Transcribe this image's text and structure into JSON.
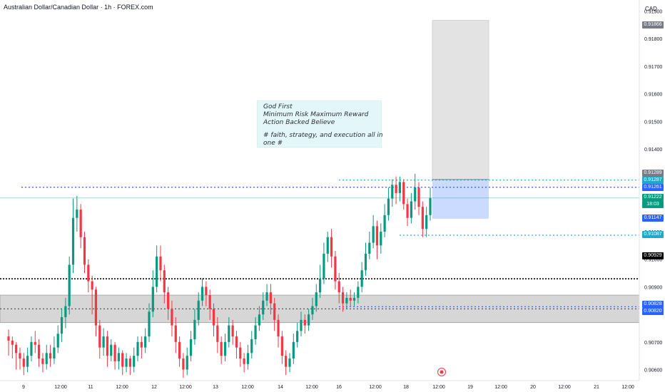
{
  "header": {
    "title": "Australian Dollar/Canadian Dollar · 1h · FOREX.com"
  },
  "axis": {
    "currency": "CAD",
    "y_ticks": [
      {
        "label": "0.91900",
        "value": 0.919
      },
      {
        "label": "0.91800",
        "value": 0.918
      },
      {
        "label": "0.91700",
        "value": 0.917
      },
      {
        "label": "0.91600",
        "value": 0.916
      },
      {
        "label": "0.91500",
        "value": 0.915
      },
      {
        "label": "0.91400",
        "value": 0.914
      },
      {
        "label": "0.91100",
        "value": 0.911
      },
      {
        "label": "0.91000",
        "value": 0.91
      },
      {
        "label": "0.90900",
        "value": 0.909
      },
      {
        "label": "0.90700",
        "value": 0.907
      },
      {
        "label": "0.90600",
        "value": 0.906
      }
    ],
    "x_ticks": [
      "9",
      "12:00",
      "11",
      "12:00",
      "12",
      "12:00",
      "13",
      "12:00",
      "14",
      "12:00",
      "16",
      "12:00",
      "18",
      "12:00",
      "19",
      "12:00",
      "20",
      "12:00",
      "21",
      "12:00"
    ]
  },
  "price_labels": [
    {
      "label": "0.91866",
      "color": "#787b86",
      "value": 0.91866
    },
    {
      "label": "0.91289",
      "color": "#787b86",
      "value": 0.91289
    },
    {
      "label": "0.91287",
      "color": "#22a7c7",
      "value": 0.91287
    },
    {
      "label": "0.91261",
      "color": "#2962ff",
      "value": 0.91261
    },
    {
      "label": "0.91222",
      "color": "#089981",
      "value": 0.91222
    },
    {
      "label": "18:03",
      "color": "#089981",
      "value": 0.91205
    },
    {
      "label": "0.91147",
      "color": "#2962ff",
      "value": 0.91147
    },
    {
      "label": "0.91087",
      "color": "#22a7c7",
      "value": 0.91087
    },
    {
      "label": "0.90929",
      "color": "#000000",
      "value": 0.90929
    },
    {
      "label": "0.90828",
      "color": "#2962ff",
      "value": 0.90828
    },
    {
      "label": "0.90820",
      "color": "#2962ff",
      "value": 0.9082
    }
  ],
  "annotation": {
    "lines": [
      "God First",
      "Minimum Risk Maximum Reward",
      "Action Backed Believe",
      "",
      "# faith, strategy, and execution all in",
      "one #"
    ]
  },
  "colors": {
    "up": "#089981",
    "down": "#f23645",
    "blue_dotted": "#2962ff",
    "teal_dotted": "#22a7c7",
    "zone": "#cfcfcf",
    "target": "#e0e0e0",
    "stop": "#c5d6ff"
  },
  "chart_data": {
    "type": "candlestick",
    "symbol": "AUDCAD",
    "timeframe": "1h",
    "ylim": [
      0.9056,
      0.9194
    ],
    "last_price": 0.91222,
    "horizontal_levels": [
      {
        "price": 0.91261,
        "style": "dotted",
        "color": "#2962ff"
      },
      {
        "price": 0.91287,
        "style": "dotted",
        "color": "#22a7c7"
      },
      {
        "price": 0.91087,
        "style": "dotted",
        "color": "#22a7c7"
      },
      {
        "price": 0.90929,
        "style": "dotted",
        "color": "#000000"
      },
      {
        "price": 0.90828,
        "style": "dotted",
        "color": "#2962ff"
      },
      {
        "price": 0.9082,
        "style": "dotted",
        "color": "#555555"
      }
    ],
    "zone": {
      "from": 0.9077,
      "to": 0.9087
    },
    "position": {
      "entry": 0.91289,
      "target": 0.91866,
      "stop": 0.91147
    },
    "candles": [
      [
        0.9072,
        0.90705,
        0.90745,
        0.9065
      ],
      [
        0.90705,
        0.9069,
        0.9072,
        0.9064
      ],
      [
        0.9069,
        0.9066,
        0.907,
        0.906
      ],
      [
        0.9066,
        0.9064,
        0.9068,
        0.906
      ],
      [
        0.9064,
        0.9061,
        0.9066,
        0.9058
      ],
      [
        0.9061,
        0.9065,
        0.9068,
        0.9059
      ],
      [
        0.9065,
        0.907,
        0.9072,
        0.9063
      ],
      [
        0.907,
        0.9069,
        0.9074,
        0.9066
      ],
      [
        0.9069,
        0.9064,
        0.9071,
        0.9061
      ],
      [
        0.9064,
        0.9062,
        0.9066,
        0.9059
      ],
      [
        0.9062,
        0.9066,
        0.9069,
        0.906
      ],
      [
        0.9066,
        0.9064,
        0.9069,
        0.9061
      ],
      [
        0.9064,
        0.9068,
        0.9072,
        0.9062
      ],
      [
        0.9068,
        0.9073,
        0.9076,
        0.9066
      ],
      [
        0.9073,
        0.9079,
        0.9082,
        0.907
      ],
      [
        0.9079,
        0.9083,
        0.9086,
        0.9075
      ],
      [
        0.9083,
        0.9098,
        0.9101,
        0.908
      ],
      [
        0.9098,
        0.9115,
        0.9122,
        0.9095
      ],
      [
        0.9115,
        0.9118,
        0.9123,
        0.911
      ],
      [
        0.9118,
        0.9108,
        0.912,
        0.9104
      ],
      [
        0.9108,
        0.9098,
        0.911,
        0.9095
      ],
      [
        0.9098,
        0.9092,
        0.91,
        0.9088
      ],
      [
        0.9092,
        0.9089,
        0.9094,
        0.908
      ],
      [
        0.9089,
        0.9076,
        0.909,
        0.9072
      ],
      [
        0.9076,
        0.9068,
        0.9078,
        0.9064
      ],
      [
        0.9068,
        0.9072,
        0.9075,
        0.9065
      ],
      [
        0.9072,
        0.9065,
        0.9074,
        0.9061
      ],
      [
        0.9065,
        0.9069,
        0.9071,
        0.9063
      ],
      [
        0.9069,
        0.9063,
        0.907,
        0.906
      ],
      [
        0.9063,
        0.9066,
        0.9068,
        0.906
      ],
      [
        0.9066,
        0.9061,
        0.9067,
        0.9058
      ],
      [
        0.9061,
        0.9064,
        0.9066,
        0.9059
      ],
      [
        0.9064,
        0.9061,
        0.9065,
        0.9058
      ],
      [
        0.9061,
        0.9065,
        0.9068,
        0.9059
      ],
      [
        0.9065,
        0.907,
        0.9072,
        0.9063
      ],
      [
        0.907,
        0.9068,
        0.9072,
        0.9064
      ],
      [
        0.9068,
        0.9072,
        0.9075,
        0.9066
      ],
      [
        0.9072,
        0.9081,
        0.9084,
        0.907
      ],
      [
        0.9081,
        0.909,
        0.9096,
        0.9079
      ],
      [
        0.909,
        0.9101,
        0.9105,
        0.9088
      ],
      [
        0.9101,
        0.9096,
        0.9105,
        0.9092
      ],
      [
        0.9096,
        0.9088,
        0.9098,
        0.9084
      ],
      [
        0.9088,
        0.9082,
        0.909,
        0.9078
      ],
      [
        0.9082,
        0.9076,
        0.9085,
        0.9072
      ],
      [
        0.9076,
        0.907,
        0.9079,
        0.9066
      ],
      [
        0.907,
        0.9064,
        0.9072,
        0.9061
      ],
      [
        0.9064,
        0.906,
        0.9066,
        0.9057
      ],
      [
        0.906,
        0.9065,
        0.9068,
        0.9058
      ],
      [
        0.9065,
        0.9071,
        0.9074,
        0.9063
      ],
      [
        0.9071,
        0.9078,
        0.9082,
        0.9069
      ],
      [
        0.9078,
        0.9085,
        0.9088,
        0.9076
      ],
      [
        0.9085,
        0.909,
        0.9093,
        0.9083
      ],
      [
        0.909,
        0.9087,
        0.9092,
        0.9083
      ],
      [
        0.9087,
        0.9082,
        0.9089,
        0.9078
      ],
      [
        0.9082,
        0.9076,
        0.9084,
        0.9072
      ],
      [
        0.9076,
        0.907,
        0.9079,
        0.9066
      ],
      [
        0.907,
        0.9065,
        0.9072,
        0.9062
      ],
      [
        0.9065,
        0.907,
        0.9073,
        0.9063
      ],
      [
        0.907,
        0.9076,
        0.9079,
        0.9068
      ],
      [
        0.9076,
        0.9072,
        0.9078,
        0.9069
      ],
      [
        0.9072,
        0.9068,
        0.9074,
        0.9064
      ],
      [
        0.9068,
        0.9064,
        0.907,
        0.9061
      ],
      [
        0.9064,
        0.9062,
        0.9066,
        0.9059
      ],
      [
        0.9062,
        0.9066,
        0.9069,
        0.906
      ],
      [
        0.9066,
        0.9071,
        0.9074,
        0.9064
      ],
      [
        0.9071,
        0.9076,
        0.9079,
        0.9069
      ],
      [
        0.9076,
        0.908,
        0.9083,
        0.9074
      ],
      [
        0.908,
        0.9085,
        0.9088,
        0.9078
      ],
      [
        0.9085,
        0.9088,
        0.9091,
        0.9083
      ],
      [
        0.9088,
        0.9084,
        0.9091,
        0.908
      ],
      [
        0.9084,
        0.9078,
        0.9086,
        0.9074
      ],
      [
        0.9078,
        0.9072,
        0.908,
        0.9068
      ],
      [
        0.9072,
        0.9065,
        0.9074,
        0.9062
      ],
      [
        0.9065,
        0.9061,
        0.9067,
        0.9058
      ],
      [
        0.9061,
        0.9064,
        0.9066,
        0.9059
      ],
      [
        0.9064,
        0.907,
        0.9073,
        0.9062
      ],
      [
        0.907,
        0.9074,
        0.9077,
        0.9068
      ],
      [
        0.9074,
        0.9078,
        0.9081,
        0.9072
      ],
      [
        0.9078,
        0.9076,
        0.908,
        0.9073
      ],
      [
        0.9076,
        0.908,
        0.9082,
        0.9074
      ],
      [
        0.908,
        0.9083,
        0.9086,
        0.9078
      ],
      [
        0.9083,
        0.9088,
        0.9091,
        0.9081
      ],
      [
        0.9088,
        0.9093,
        0.9098,
        0.9086
      ],
      [
        0.9093,
        0.9102,
        0.9106,
        0.9091
      ],
      [
        0.9102,
        0.9108,
        0.911,
        0.9099
      ],
      [
        0.9108,
        0.9101,
        0.9111,
        0.9097
      ],
      [
        0.9101,
        0.9092,
        0.9103,
        0.9089
      ],
      [
        0.9092,
        0.9088,
        0.9095,
        0.9084
      ],
      [
        0.9088,
        0.9084,
        0.909,
        0.9081
      ],
      [
        0.9084,
        0.9086,
        0.9088,
        0.9082
      ],
      [
        0.9086,
        0.9085,
        0.9089,
        0.9083
      ],
      [
        0.9085,
        0.9086,
        0.9088,
        0.9083
      ],
      [
        0.9086,
        0.909,
        0.9092,
        0.9084
      ],
      [
        0.909,
        0.9096,
        0.9099,
        0.9088
      ],
      [
        0.9096,
        0.9102,
        0.9106,
        0.9094
      ],
      [
        0.9102,
        0.9106,
        0.911,
        0.91
      ],
      [
        0.9106,
        0.9112,
        0.9116,
        0.9104
      ],
      [
        0.9112,
        0.9105,
        0.9114,
        0.91
      ],
      [
        0.9105,
        0.911,
        0.9113,
        0.9102
      ],
      [
        0.911,
        0.9116,
        0.912,
        0.9108
      ],
      [
        0.9116,
        0.9122,
        0.9126,
        0.9114
      ],
      [
        0.9122,
        0.9127,
        0.9129,
        0.9119
      ],
      [
        0.9127,
        0.9124,
        0.913,
        0.912
      ],
      [
        0.9124,
        0.9128,
        0.913,
        0.9121
      ],
      [
        0.9128,
        0.912,
        0.9129,
        0.9118
      ],
      [
        0.912,
        0.9115,
        0.9122,
        0.9112
      ],
      [
        0.9115,
        0.9121,
        0.9124,
        0.9113
      ],
      [
        0.9121,
        0.9126,
        0.9131,
        0.9118
      ],
      [
        0.9126,
        0.9119,
        0.9128,
        0.9116
      ],
      [
        0.9119,
        0.9111,
        0.9121,
        0.9108
      ],
      [
        0.9111,
        0.9116,
        0.9119,
        0.9108
      ],
      [
        0.9116,
        0.91222,
        0.9126,
        0.9114
      ]
    ]
  }
}
